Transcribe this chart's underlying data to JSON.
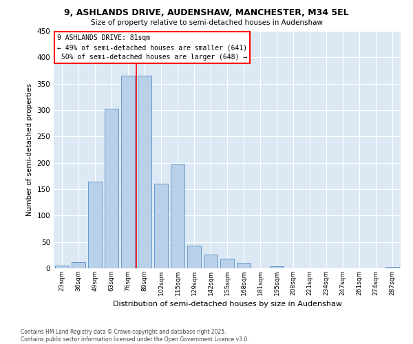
{
  "title": "9, ASHLANDS DRIVE, AUDENSHAW, MANCHESTER, M34 5EL",
  "subtitle": "Size of property relative to semi-detached houses in Audenshaw",
  "xlabel": "Distribution of semi-detached houses by size in Audenshaw",
  "ylabel": "Number of semi-detached properties",
  "bin_labels": [
    "23sqm",
    "36sqm",
    "49sqm",
    "63sqm",
    "76sqm",
    "89sqm",
    "102sqm",
    "115sqm",
    "129sqm",
    "142sqm",
    "155sqm",
    "168sqm",
    "181sqm",
    "195sqm",
    "208sqm",
    "221sqm",
    "234sqm",
    "247sqm",
    "261sqm",
    "274sqm",
    "287sqm"
  ],
  "bar_values": [
    5,
    12,
    165,
    303,
    365,
    365,
    160,
    197,
    43,
    26,
    18,
    11,
    0,
    4,
    0,
    0,
    0,
    0,
    0,
    0,
    2
  ],
  "bar_color": "#b8d0e8",
  "bar_edge_color": "#6699cc",
  "property_label": "9 ASHLANDS DRIVE: 81sqm",
  "smaller_pct": 49,
  "smaller_count": 641,
  "larger_pct": 50,
  "larger_count": 648,
  "vline_pos": 4.5,
  "ylim": [
    0,
    450
  ],
  "yticks": [
    0,
    50,
    100,
    150,
    200,
    250,
    300,
    350,
    400,
    450
  ],
  "background_color": "#dce9f5",
  "grid_color": "#ffffff",
  "footer_line1": "Contains HM Land Registry data © Crown copyright and database right 2025.",
  "footer_line2": "Contains public sector information licensed under the Open Government Licence v3.0."
}
